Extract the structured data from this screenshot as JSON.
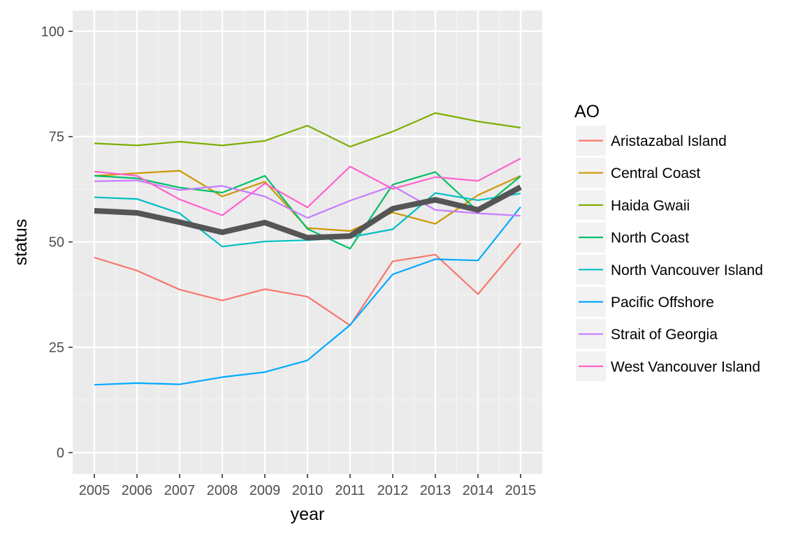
{
  "chart_data": {
    "type": "line",
    "xlabel": "year",
    "ylabel": "status",
    "xlim": [
      2005,
      2015
    ],
    "ylim": [
      0,
      100
    ],
    "x": [
      2005,
      2006,
      2007,
      2008,
      2009,
      2010,
      2011,
      2012,
      2013,
      2014,
      2015
    ],
    "x_ticks": [
      "2005",
      "2006",
      "2007",
      "2008",
      "2009",
      "2010",
      "2011",
      "2012",
      "2013",
      "2014",
      "2015"
    ],
    "y_ticks": [
      0,
      25,
      50,
      75,
      100
    ],
    "y_tick_labels": [
      "0",
      "25",
      "50",
      "75",
      "100"
    ],
    "grid": true,
    "legend": {
      "title": "AO",
      "position": "right"
    },
    "series": [
      {
        "name": "Aristazabal Island",
        "color": "#F8766D",
        "values": [
          46.3,
          43.2,
          38.7,
          36.1,
          38.8,
          37.0,
          30.2,
          45.4,
          47.0,
          37.6,
          49.7
        ]
      },
      {
        "name": "Central Coast",
        "color": "#CD9600",
        "values": [
          65.7,
          66.3,
          66.9,
          60.8,
          64.3,
          53.3,
          52.6,
          57.0,
          54.3,
          61.1,
          65.7
        ]
      },
      {
        "name": "Haida Gwaii",
        "color": "#7CAE00",
        "values": [
          73.4,
          72.9,
          73.8,
          72.9,
          74.0,
          77.6,
          72.6,
          76.2,
          80.6,
          78.6,
          77.1
        ]
      },
      {
        "name": "North Coast",
        "color": "#00BE67",
        "values": [
          65.7,
          65.1,
          62.9,
          61.7,
          65.7,
          53.1,
          48.4,
          63.6,
          66.6,
          57.3,
          65.6
        ]
      },
      {
        "name": "North Vancouver Island",
        "color": "#00BFC4",
        "values": [
          60.6,
          60.2,
          56.8,
          48.9,
          50.1,
          50.4,
          51.1,
          53.0,
          61.6,
          59.9,
          61.5
        ]
      },
      {
        "name": "Pacific Offshore",
        "color": "#00A9FF",
        "values": [
          16.1,
          16.5,
          16.2,
          17.9,
          19.1,
          21.9,
          30.3,
          42.3,
          45.9,
          45.6,
          58.3
        ]
      },
      {
        "name": "Strait of Georgia",
        "color": "#C77CFF",
        "values": [
          64.4,
          64.6,
          62.3,
          63.3,
          60.8,
          55.7,
          59.8,
          63.3,
          57.6,
          56.8,
          56.2
        ]
      },
      {
        "name": "West Vancouver Island",
        "color": "#FF61CC",
        "values": [
          66.7,
          65.7,
          60.1,
          56.3,
          63.9,
          58.2,
          67.9,
          62.6,
          65.4,
          64.5,
          69.8
        ]
      }
    ],
    "overall": {
      "color": "#555555",
      "values": [
        57.4,
        56.9,
        54.7,
        52.3,
        54.6,
        51.0,
        51.4,
        57.9,
        60.0,
        57.6,
        63.0
      ]
    }
  }
}
